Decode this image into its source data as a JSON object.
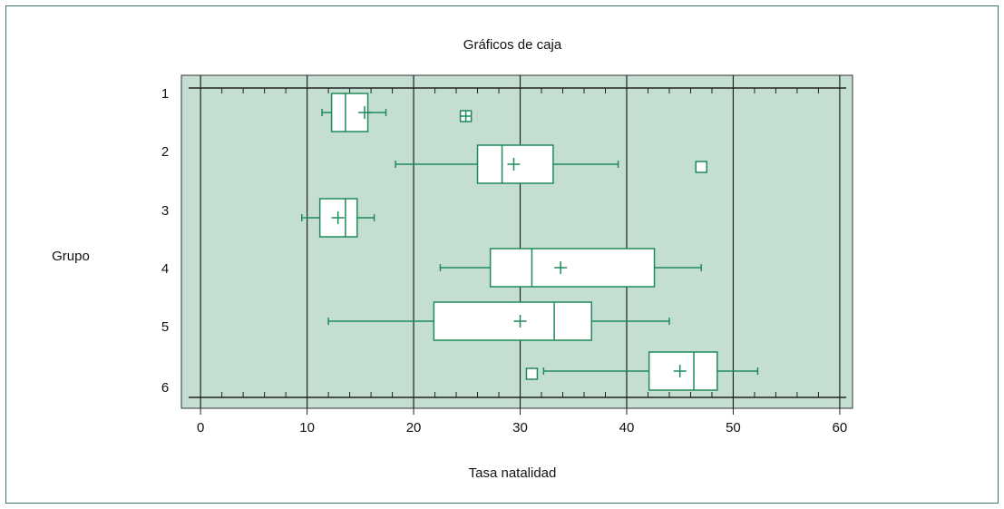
{
  "chart_data": {
    "type": "boxplot",
    "title": "Gráficos de caja",
    "x_label": "Tasa natalidad",
    "y_label": "Grupo",
    "categories": [
      "1",
      "2",
      "3",
      "4",
      "5",
      "6"
    ],
    "boxes": [
      {
        "min": 11.4,
        "q1": 12.3,
        "median": 13.6,
        "q3": 15.7,
        "max": 17.4,
        "mean": 15.4,
        "outliers": [
          24.9
        ]
      },
      {
        "min": 18.3,
        "q1": 26.0,
        "median": 28.3,
        "q3": 33.1,
        "max": 39.2,
        "mean": 29.4,
        "outliers": [
          47.0
        ]
      },
      {
        "min": 9.5,
        "q1": 11.2,
        "median": 13.6,
        "q3": 14.7,
        "max": 16.3,
        "mean": 12.9,
        "outliers": []
      },
      {
        "min": 22.5,
        "q1": 27.2,
        "median": 31.1,
        "q3": 42.6,
        "max": 47.0,
        "mean": 33.8,
        "outliers": []
      },
      {
        "min": 12.0,
        "q1": 21.9,
        "median": 33.2,
        "q3": 36.7,
        "max": 44.0,
        "mean": 30.0,
        "outliers": []
      },
      {
        "min": 32.2,
        "q1": 42.1,
        "median": 46.3,
        "q3": 48.5,
        "max": 52.3,
        "mean": 45.0,
        "outliers": [
          31.1
        ]
      }
    ],
    "color": "#1f8a5a",
    "background": "#c4dfd1",
    "xlim": [
      -1.8,
      61.2
    ],
    "xticks": [
      0,
      10,
      20,
      30,
      40,
      50,
      60
    ],
    "xminorticks": [
      2,
      4,
      6,
      8,
      12,
      14,
      16,
      18,
      22,
      24,
      26,
      28,
      32,
      34,
      36,
      38,
      42,
      44,
      46,
      48,
      52,
      54,
      56,
      58
    ],
    "grid": true
  }
}
